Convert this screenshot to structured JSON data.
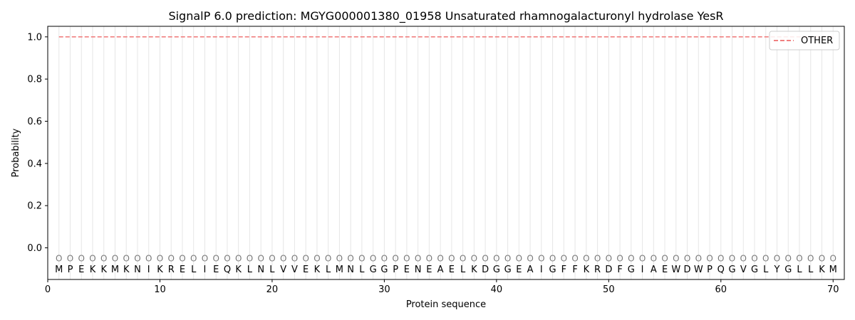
{
  "chart_data": {
    "type": "line",
    "title": "SignalP 6.0 prediction: MGYG000001380_01958 Unsaturated rhamnogalacturonyl hydrolase YesR",
    "xlabel": "Protein sequence",
    "ylabel": "Probability",
    "xlim": [
      0,
      71
    ],
    "ylim": [
      -0.15,
      1.05
    ],
    "xticks": [
      0,
      10,
      20,
      30,
      40,
      50,
      60,
      70
    ],
    "yticks": [
      0.0,
      0.2,
      0.4,
      0.6,
      0.8,
      1.0
    ],
    "ytick_labels": [
      "0.0",
      "0.2",
      "0.4",
      "0.6",
      "0.8",
      "1.0"
    ],
    "sequence": [
      "M",
      "P",
      "E",
      "K",
      "K",
      "M",
      "K",
      "N",
      "I",
      "K",
      "R",
      "E",
      "L",
      "I",
      "E",
      "Q",
      "K",
      "L",
      "N",
      "L",
      "V",
      "V",
      "E",
      "K",
      "L",
      "M",
      "N",
      "L",
      "G",
      "G",
      "P",
      "E",
      "N",
      "E",
      "A",
      "E",
      "L",
      "K",
      "D",
      "G",
      "G",
      "E",
      "A",
      "I",
      "G",
      "F",
      "F",
      "K",
      "R",
      "D",
      "F",
      "G",
      "I",
      "A",
      "E",
      "W",
      "D",
      "W",
      "P",
      "Q",
      "G",
      "V",
      "G",
      "L",
      "Y",
      "G",
      "L",
      "L",
      "K",
      "M"
    ],
    "prediction_marker": "O",
    "series": [
      {
        "name": "OTHER",
        "style": "dashed",
        "color": "#f08080",
        "x_range": [
          1,
          70
        ],
        "value": 1.0
      }
    ],
    "legend": {
      "position": "top-right"
    },
    "grid": "vertical lines at each residue position"
  }
}
